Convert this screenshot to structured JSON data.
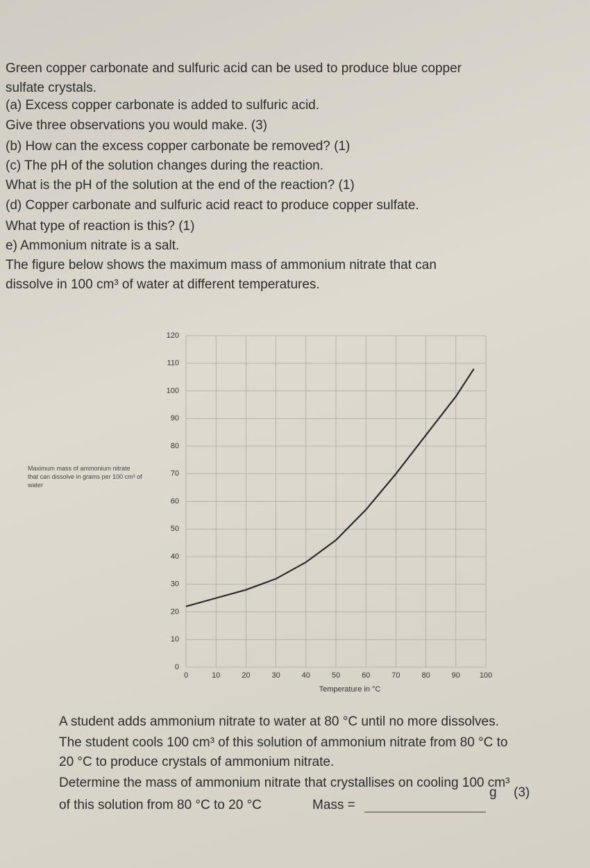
{
  "document": {
    "lines": [
      "Green copper carbonate and sulfuric acid can be used to produce blue copper",
      "sulfate crystals.",
      "(a) Excess copper carbonate is added to sulfuric acid.",
      "Give three observations you would make. (3)",
      "(b) How can the excess copper carbonate be removed? (1)",
      "(c) The pH of the solution changes during the reaction.",
      "What is the pH of the solution at the end of the reaction? (1)",
      "(d) Copper carbonate and sulfuric acid react to produce copper sulfate.",
      "What type of reaction is this? (1)",
      "e) Ammonium nitrate is a salt.",
      "The figure below shows the maximum mass of ammonium nitrate that can",
      "dissolve in 100 cm³ of water at different temperatures."
    ],
    "question_lines": [
      "A student adds ammonium nitrate to water at 80 °C until no more dissolves.",
      "The student cools 100 cm³ of this solution of ammonium nitrate from 80 °C to",
      "20 °C to produce crystals of ammonium nitrate.",
      "Determine the mass of ammonium nitrate that crystallises on cooling 100 cm³",
      "of this solution from 80 °C to 20 °C"
    ],
    "answer": {
      "label": "Mass =",
      "unit": "g",
      "marks": "(3)"
    }
  },
  "chart_data": {
    "type": "line",
    "y_label": "Maximum mass of ammonium nitrate that can dissolve in grams per 100 cm³ of water",
    "x_label": "Temperature in °C",
    "x": [
      0,
      10,
      20,
      30,
      40,
      50,
      60,
      70,
      80,
      90,
      96
    ],
    "series": [
      {
        "name": "Ammonium nitrate",
        "color": "#2a2a2a",
        "values": [
          22,
          25,
          28,
          32,
          38,
          46,
          57,
          70,
          84,
          98,
          108
        ]
      }
    ],
    "xlim": [
      0,
      100
    ],
    "xticks": [
      0,
      10,
      20,
      30,
      40,
      50,
      60,
      70,
      80,
      90,
      100
    ],
    "ylim": [
      0,
      120
    ],
    "yticks": [
      0,
      10,
      20,
      30,
      40,
      50,
      60,
      70,
      80,
      90,
      100,
      110,
      120
    ],
    "grid": true
  }
}
